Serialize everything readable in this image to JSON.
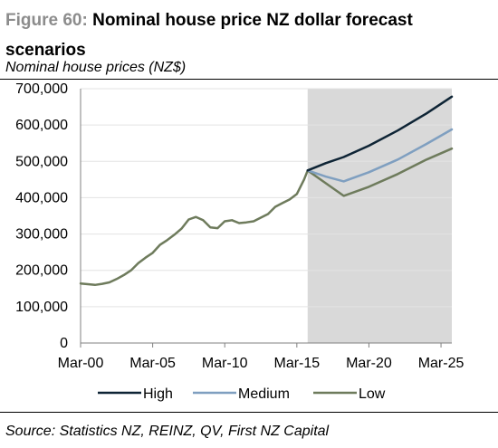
{
  "figure": {
    "number": "Figure 60:",
    "title": "Nominal house price NZ dollar forecast scenarios",
    "subtitle": "Nominal house prices (NZ$)",
    "source": "Source: Statistics NZ, REINZ, QV, First NZ Capital"
  },
  "chart_data": {
    "type": "line",
    "title": "Nominal house price NZ dollar forecast scenarios",
    "subtitle": "Nominal house prices (NZ$)",
    "xlabel": "",
    "ylabel": "",
    "ylim": [
      0,
      700000
    ],
    "xlim": [
      "Mar-00",
      "Dec-25"
    ],
    "yticks": [
      "0",
      "100,000",
      "200,000",
      "300,000",
      "400,000",
      "500,000",
      "600,000",
      "700,000"
    ],
    "yticks_values": [
      0,
      100000,
      200000,
      300000,
      400000,
      500000,
      600000,
      700000
    ],
    "xticks": [
      "Mar-00",
      "Mar-05",
      "Mar-10",
      "Mar-15",
      "Mar-20",
      "Mar-25"
    ],
    "xticks_values": [
      "2000-03",
      "2005-03",
      "2010-03",
      "2015-03",
      "2020-03",
      "2025-03"
    ],
    "grid": true,
    "legend_position": "bottom",
    "forecast_shading": {
      "from": "2015-12",
      "to": "2025-12",
      "color": "#d9d9d9"
    },
    "series": [
      {
        "name": "Low",
        "color": "#6e7b5c",
        "points": [
          [
            "2000-03",
            164000
          ],
          [
            "2000-09",
            162000
          ],
          [
            "2001-03",
            160000
          ],
          [
            "2001-09",
            163000
          ],
          [
            "2002-03",
            167000
          ],
          [
            "2002-09",
            176000
          ],
          [
            "2003-03",
            187000
          ],
          [
            "2003-09",
            200000
          ],
          [
            "2004-03",
            220000
          ],
          [
            "2004-09",
            235000
          ],
          [
            "2005-03",
            248000
          ],
          [
            "2005-09",
            270000
          ],
          [
            "2006-03",
            283000
          ],
          [
            "2006-09",
            298000
          ],
          [
            "2007-03",
            315000
          ],
          [
            "2007-09",
            340000
          ],
          [
            "2008-03",
            347000
          ],
          [
            "2008-09",
            338000
          ],
          [
            "2009-03",
            318000
          ],
          [
            "2009-09",
            316000
          ],
          [
            "2010-03",
            335000
          ],
          [
            "2010-09",
            338000
          ],
          [
            "2011-03",
            330000
          ],
          [
            "2011-09",
            332000
          ],
          [
            "2012-03",
            335000
          ],
          [
            "2012-09",
            345000
          ],
          [
            "2013-03",
            355000
          ],
          [
            "2013-09",
            375000
          ],
          [
            "2014-03",
            385000
          ],
          [
            "2014-09",
            395000
          ],
          [
            "2015-03",
            410000
          ],
          [
            "2015-09",
            450000
          ],
          [
            "2015-12",
            475000
          ],
          [
            "2017-03",
            440000
          ],
          [
            "2018-06",
            405000
          ],
          [
            "2020-03",
            430000
          ],
          [
            "2022-03",
            465000
          ],
          [
            "2024-03",
            505000
          ],
          [
            "2025-12",
            535000
          ]
        ]
      },
      {
        "name": "Medium",
        "color": "#7f9fc0",
        "points": [
          [
            "2015-12",
            475000
          ],
          [
            "2017-03",
            458000
          ],
          [
            "2018-06",
            445000
          ],
          [
            "2020-03",
            470000
          ],
          [
            "2022-03",
            505000
          ],
          [
            "2024-03",
            548000
          ],
          [
            "2025-12",
            588000
          ]
        ]
      },
      {
        "name": "High",
        "color": "#0e2435",
        "points": [
          [
            "2015-12",
            475000
          ],
          [
            "2017-03",
            495000
          ],
          [
            "2018-06",
            512000
          ],
          [
            "2020-03",
            543000
          ],
          [
            "2022-03",
            585000
          ],
          [
            "2024-03",
            632000
          ],
          [
            "2025-12",
            678000
          ]
        ]
      }
    ],
    "legend_order": [
      "High",
      "Medium",
      "Low"
    ]
  }
}
